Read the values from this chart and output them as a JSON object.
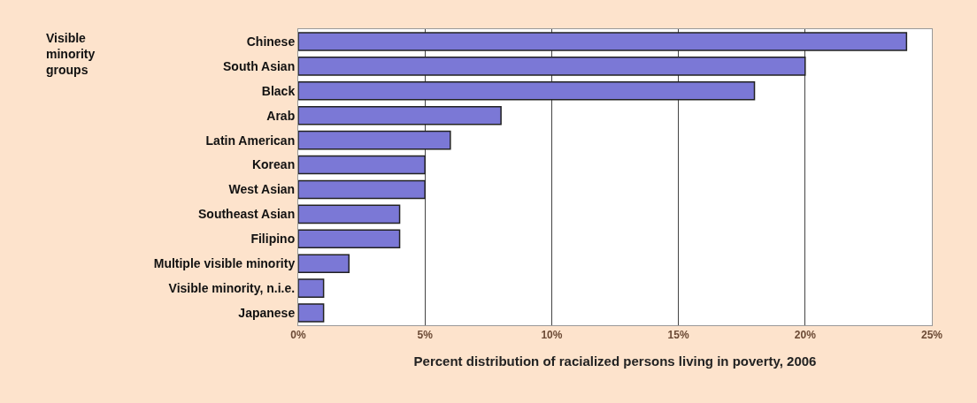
{
  "chart_data": {
    "type": "bar",
    "orientation": "horizontal",
    "ylabel": "Visible minority groups",
    "xlabel": "Percent distribution of racialized persons living in poverty, 2006",
    "categories": [
      "Chinese",
      "South Asian",
      "Black",
      "Arab",
      "Latin American",
      "Korean",
      "West Asian",
      "Southeast Asian",
      "Filipino",
      "Multiple visible minority",
      "Visible minority, n.i.e.",
      "Japanese"
    ],
    "values": [
      24,
      20,
      18,
      8,
      6,
      5,
      5,
      4,
      4,
      2,
      1,
      1
    ],
    "color": "#7b78d6",
    "xlim": [
      0,
      25
    ],
    "xticks": [
      {
        "value": 0,
        "label": "0%"
      },
      {
        "value": 5,
        "label": "5%"
      },
      {
        "value": 10,
        "label": "10%"
      },
      {
        "value": 15,
        "label": "15%"
      },
      {
        "value": 20,
        "label": "20%"
      },
      {
        "value": 25,
        "label": "25%"
      }
    ],
    "grid": "x"
  }
}
